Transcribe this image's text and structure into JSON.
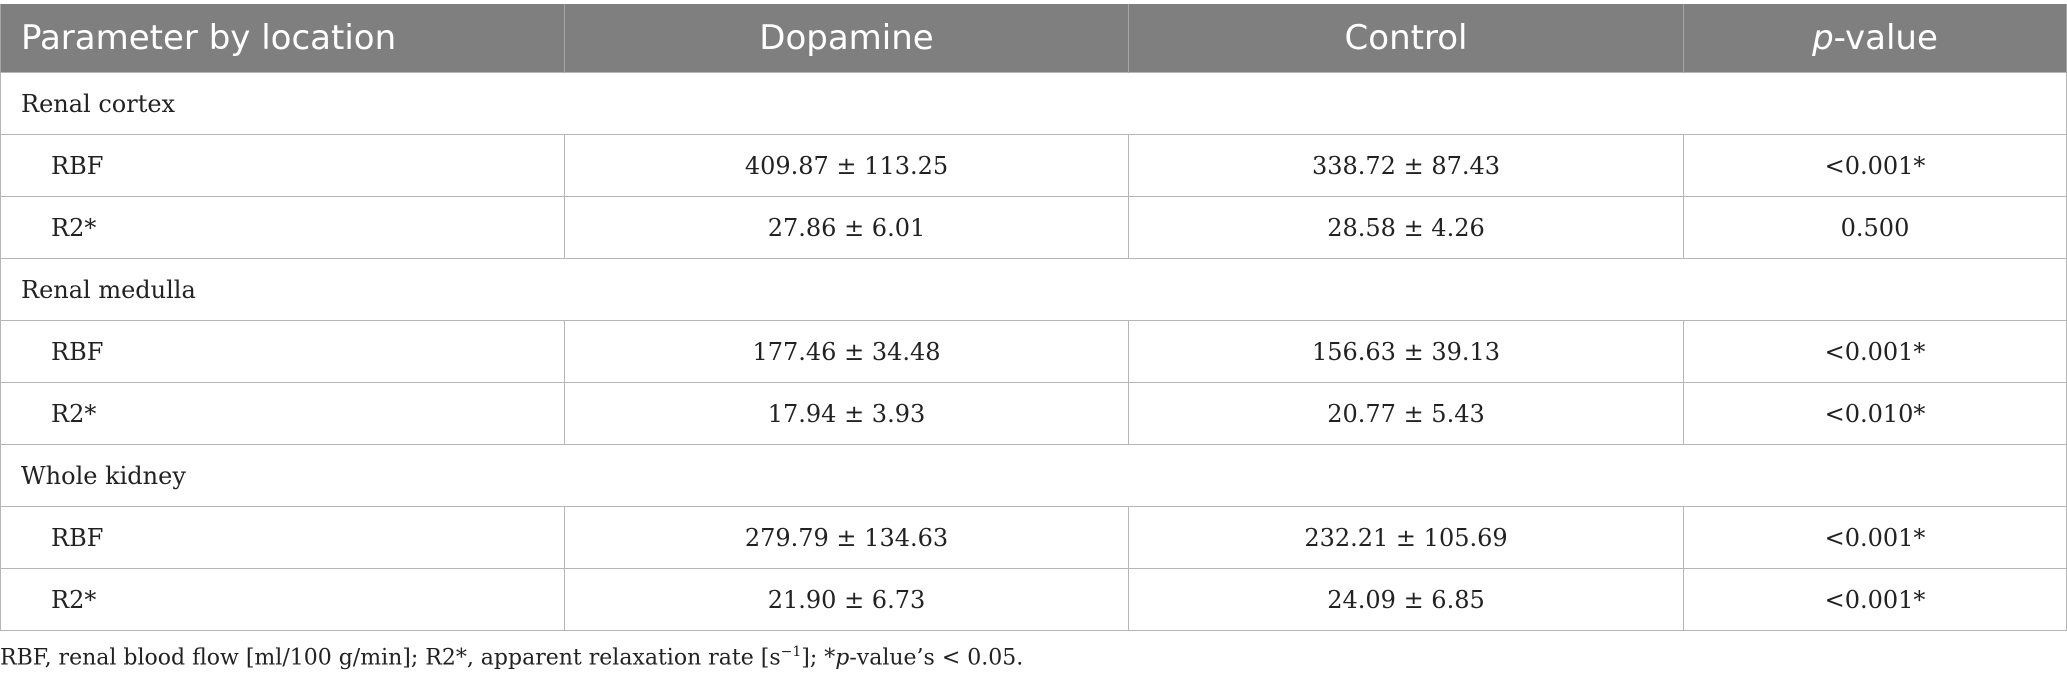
{
  "table": {
    "headers": {
      "parameter": "Parameter by location",
      "dopamine": "Dopamine",
      "control": "Control",
      "p_prefix": "p",
      "p_suffix": "-value"
    },
    "sections": [
      {
        "title": "Renal cortex",
        "rows": [
          {
            "param": "RBF",
            "dopamine": "409.87 ± 113.25",
            "control": "338.72 ± 87.43",
            "p": "<0.001*"
          },
          {
            "param": "R2*",
            "dopamine": "27.86 ± 6.01",
            "control": "28.58 ± 4.26",
            "p": "0.500"
          }
        ]
      },
      {
        "title": "Renal medulla",
        "rows": [
          {
            "param": "RBF",
            "dopamine": "177.46 ± 34.48",
            "control": "156.63 ± 39.13",
            "p": "<0.001*"
          },
          {
            "param": "R2*",
            "dopamine": "17.94 ± 3.93",
            "control": "20.77 ± 5.43",
            "p": "<0.010*"
          }
        ]
      },
      {
        "title": "Whole kidney",
        "rows": [
          {
            "param": "RBF",
            "dopamine": "279.79 ± 134.63",
            "control": "232.21 ± 105.69",
            "p": "<0.001*"
          },
          {
            "param": "R2*",
            "dopamine": "21.90 ± 6.73",
            "control": "24.09 ± 6.85",
            "p": "<0.001*"
          }
        ]
      }
    ]
  },
  "footnote": {
    "part1": "RBF, renal blood flow [ml/100 g/min]; R2*, apparent relaxation rate [s",
    "sup": "−1",
    "part2": "]; *",
    "p_italic": "p",
    "part3": "-value’s < 0.05."
  }
}
